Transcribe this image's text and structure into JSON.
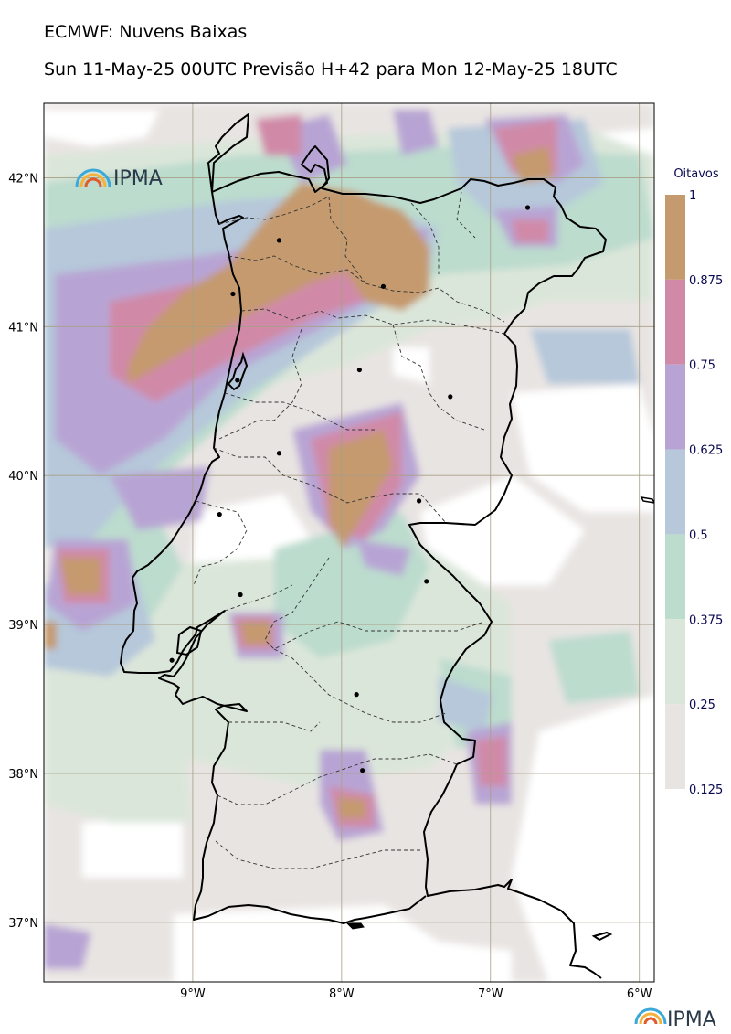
{
  "header": {
    "title": "ECMWF: Nuvens Baixas",
    "subtitle": "Sun 11-May-25 00UTC Previsão H+42 para Mon 12-May-25 18UTC"
  },
  "map": {
    "lat_labels": [
      "42°N",
      "41°N",
      "40°N",
      "39°N",
      "38°N",
      "37°N"
    ],
    "lon_labels": [
      "9°W",
      "8°W",
      "7°W",
      "6°W"
    ],
    "lat_values": [
      42,
      41,
      40,
      39,
      38,
      37
    ],
    "lon_values": [
      -9,
      -8,
      -7,
      -6
    ],
    "extent": {
      "lon_min": -10,
      "lon_max": -5.9,
      "lat_min": 36.6,
      "lat_max": 42.5
    },
    "cities": [
      {
        "lon": -8.42,
        "lat": 41.58
      },
      {
        "lon": -8.73,
        "lat": 41.22
      },
      {
        "lon": -7.72,
        "lat": 41.27
      },
      {
        "lon": -6.75,
        "lat": 41.8
      },
      {
        "lon": -8.7,
        "lat": 40.64
      },
      {
        "lon": -7.88,
        "lat": 40.71
      },
      {
        "lon": -7.27,
        "lat": 40.53
      },
      {
        "lon": -8.42,
        "lat": 40.15
      },
      {
        "lon": -8.82,
        "lat": 39.74
      },
      {
        "lon": -7.48,
        "lat": 39.83
      },
      {
        "lon": -8.68,
        "lat": 39.2
      },
      {
        "lon": -7.43,
        "lat": 39.29
      },
      {
        "lon": -9.14,
        "lat": 38.76
      },
      {
        "lon": -7.9,
        "lat": 38.53
      },
      {
        "lon": -7.86,
        "lat": 38.02
      }
    ],
    "logo_text": "IPMA"
  },
  "colorbar": {
    "title": "Oitavos",
    "tick_labels": [
      "1",
      "0.875",
      "0.75",
      "0.625",
      "0.5",
      "0.375",
      "0.25",
      "0.125"
    ],
    "colors": [
      "#c59a6e",
      "#d08aa8",
      "#b8a4d4",
      "#b6c8da",
      "#bcdcce",
      "#dbe6da",
      "#e8e4e2"
    ]
  },
  "footer": {
    "logo_text": "IPMA"
  }
}
